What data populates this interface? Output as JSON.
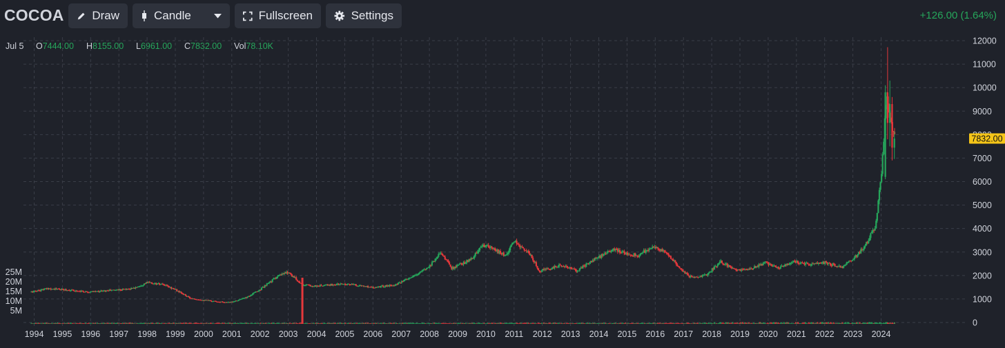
{
  "toolbar": {
    "symbol": "COCOA",
    "draw_label": "Draw",
    "chart_type_label": "Candle",
    "fullscreen_label": "Fullscreen",
    "settings_label": "Settings",
    "change_text": "+126.00 (1.64%)"
  },
  "ohlc": {
    "date": "Jul 5",
    "o_label": "O",
    "o_value": "7444.00",
    "h_label": "H",
    "h_value": "8155.00",
    "l_label": "L",
    "l_value": "6961.00",
    "c_label": "C",
    "c_value": "7832.00",
    "vol_label": "Vol",
    "vol_value": "78.10K"
  },
  "colors": {
    "up": "#26a65b",
    "down": "#e5383b",
    "background": "#1f222a",
    "grid": "#3a3e48",
    "price_tag": "#f5c518"
  },
  "chart_data": {
    "type": "candlestick",
    "price_axis_ticks": [
      0,
      1000,
      2000,
      3000,
      4000,
      5000,
      6000,
      7000,
      8000,
      9000,
      10000,
      11000,
      12000
    ],
    "price_axis_range": [
      0,
      12000
    ],
    "volume_axis_labels": [
      "25M",
      "20M",
      "15M",
      "10M",
      "5M"
    ],
    "x_tick_labels": [
      "1994",
      "1995",
      "1996",
      "1997",
      "1998",
      "1999",
      "2000",
      "2001",
      "2002",
      "2003",
      "2004",
      "2005",
      "2006",
      "2007",
      "2008",
      "2009",
      "2010",
      "2011",
      "2012",
      "2013",
      "2014",
      "2015",
      "2016",
      "2017",
      "2018",
      "2019",
      "2020",
      "2021",
      "2022",
      "2023",
      "2024"
    ],
    "last_price_label": "7832.00",
    "last_price": 7832,
    "grid": true,
    "price_path_approx": [
      {
        "x": 1993.9,
        "y": 1300
      },
      {
        "x": 1994.5,
        "y": 1450
      },
      {
        "x": 1995.0,
        "y": 1400
      },
      {
        "x": 1996.0,
        "y": 1300
      },
      {
        "x": 1996.5,
        "y": 1350
      },
      {
        "x": 1997.5,
        "y": 1450
      },
      {
        "x": 1998.0,
        "y": 1700
      },
      {
        "x": 1998.6,
        "y": 1600
      },
      {
        "x": 1999.0,
        "y": 1400
      },
      {
        "x": 1999.5,
        "y": 1050
      },
      {
        "x": 2000.0,
        "y": 950
      },
      {
        "x": 2000.9,
        "y": 850
      },
      {
        "x": 2001.5,
        "y": 1050
      },
      {
        "x": 2002.0,
        "y": 1400
      },
      {
        "x": 2002.6,
        "y": 1950
      },
      {
        "x": 2003.0,
        "y": 2150
      },
      {
        "x": 2003.5,
        "y": 1600
      },
      {
        "x": 2004.0,
        "y": 1550
      },
      {
        "x": 2005.0,
        "y": 1650
      },
      {
        "x": 2006.0,
        "y": 1500
      },
      {
        "x": 2006.8,
        "y": 1600
      },
      {
        "x": 2007.5,
        "y": 2000
      },
      {
        "x": 2008.0,
        "y": 2400
      },
      {
        "x": 2008.4,
        "y": 3000
      },
      {
        "x": 2008.8,
        "y": 2300
      },
      {
        "x": 2009.5,
        "y": 2700
      },
      {
        "x": 2009.9,
        "y": 3300
      },
      {
        "x": 2010.3,
        "y": 3100
      },
      {
        "x": 2010.7,
        "y": 2850
      },
      {
        "x": 2011.0,
        "y": 3450
      },
      {
        "x": 2011.5,
        "y": 3000
      },
      {
        "x": 2011.9,
        "y": 2200
      },
      {
        "x": 2012.3,
        "y": 2300
      },
      {
        "x": 2012.7,
        "y": 2450
      },
      {
        "x": 2013.2,
        "y": 2200
      },
      {
        "x": 2013.8,
        "y": 2650
      },
      {
        "x": 2014.5,
        "y": 3100
      },
      {
        "x": 2015.0,
        "y": 2950
      },
      {
        "x": 2015.4,
        "y": 2850
      },
      {
        "x": 2015.9,
        "y": 3250
      },
      {
        "x": 2016.4,
        "y": 2950
      },
      {
        "x": 2016.9,
        "y": 2300
      },
      {
        "x": 2017.2,
        "y": 1950
      },
      {
        "x": 2017.8,
        "y": 2000
      },
      {
        "x": 2018.3,
        "y": 2600
      },
      {
        "x": 2018.9,
        "y": 2200
      },
      {
        "x": 2019.5,
        "y": 2350
      },
      {
        "x": 2019.9,
        "y": 2550
      },
      {
        "x": 2020.4,
        "y": 2350
      },
      {
        "x": 2020.9,
        "y": 2600
      },
      {
        "x": 2021.5,
        "y": 2450
      },
      {
        "x": 2022.0,
        "y": 2550
      },
      {
        "x": 2022.6,
        "y": 2350
      },
      {
        "x": 2023.0,
        "y": 2700
      },
      {
        "x": 2023.4,
        "y": 3200
      },
      {
        "x": 2023.8,
        "y": 4100
      },
      {
        "x": 2024.0,
        "y": 6200
      },
      {
        "x": 2024.2,
        "y": 9800
      },
      {
        "x": 2024.35,
        "y": 8400
      },
      {
        "x": 2024.5,
        "y": 7832
      }
    ]
  }
}
